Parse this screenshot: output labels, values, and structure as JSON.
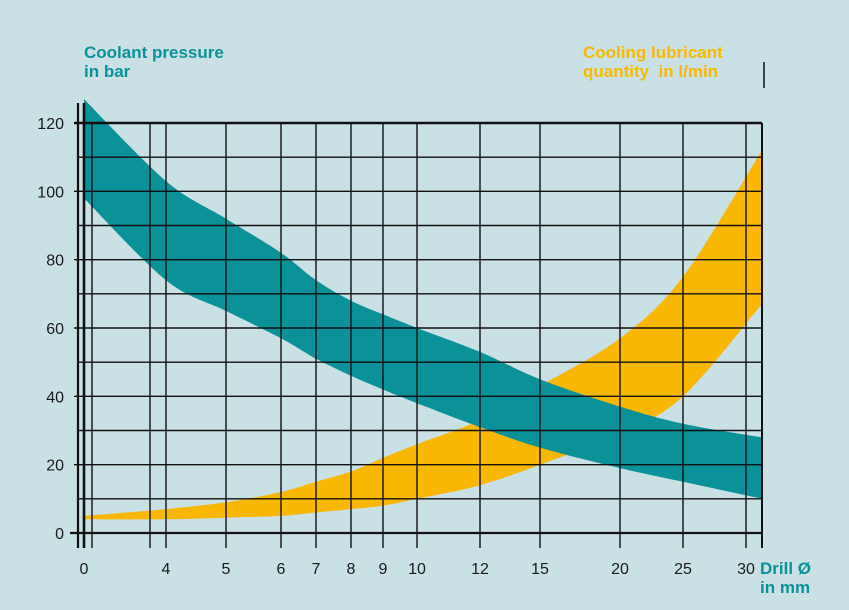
{
  "chart_data": {
    "type": "area",
    "title_left": [
      "Coolant pressure",
      "in bar"
    ],
    "title_right": [
      "Cooling lubricant",
      "quantity  in l/min"
    ],
    "xlabel": [
      "Drill Ø",
      "in mm"
    ],
    "ylim": [
      0,
      120
    ],
    "xlim": [
      0,
      31
    ],
    "y_ticks": [
      0,
      20,
      40,
      60,
      80,
      100,
      120
    ],
    "x_gridlines": [
      0,
      1,
      3,
      4,
      5,
      6,
      7,
      8,
      9,
      10,
      12,
      15,
      20,
      25,
      30
    ],
    "x_tick_labels": [
      "0",
      "4",
      "5",
      "6",
      "7",
      "8",
      "9",
      "10",
      "12",
      "15",
      "20",
      "25",
      "30"
    ],
    "x_tick_values": [
      0,
      4,
      5,
      6,
      7,
      8,
      9,
      10,
      12,
      15,
      20,
      25,
      30
    ],
    "series": [
      {
        "name": "Coolant pressure",
        "color": "#0b9198",
        "x": [
          0,
          4,
          5,
          6,
          7,
          8,
          9,
          10,
          12,
          15,
          20,
          25,
          31
        ],
        "upper": [
          127,
          103,
          92,
          82,
          74,
          68,
          64,
          60,
          53,
          45,
          37,
          32,
          28
        ],
        "lower": [
          98,
          74,
          65,
          57,
          51,
          46,
          42,
          38,
          31,
          25,
          19,
          15,
          10
        ]
      },
      {
        "name": "Cooling lubricant quantity",
        "color": "#f9b800",
        "x": [
          0,
          4,
          5,
          6,
          7,
          8,
          9,
          10,
          12,
          15,
          20,
          25,
          31
        ],
        "upper": [
          5,
          7,
          9,
          12,
          15,
          18,
          22,
          26,
          33,
          43,
          57,
          75,
          112
        ],
        "lower": [
          4,
          4,
          4.5,
          5,
          6,
          7,
          8,
          10,
          14,
          20,
          29,
          40,
          67
        ]
      }
    ]
  },
  "colors": {
    "background": "#c9e0e4",
    "teal": "#0b9198",
    "orange": "#f9b800",
    "grid": "#111111"
  }
}
